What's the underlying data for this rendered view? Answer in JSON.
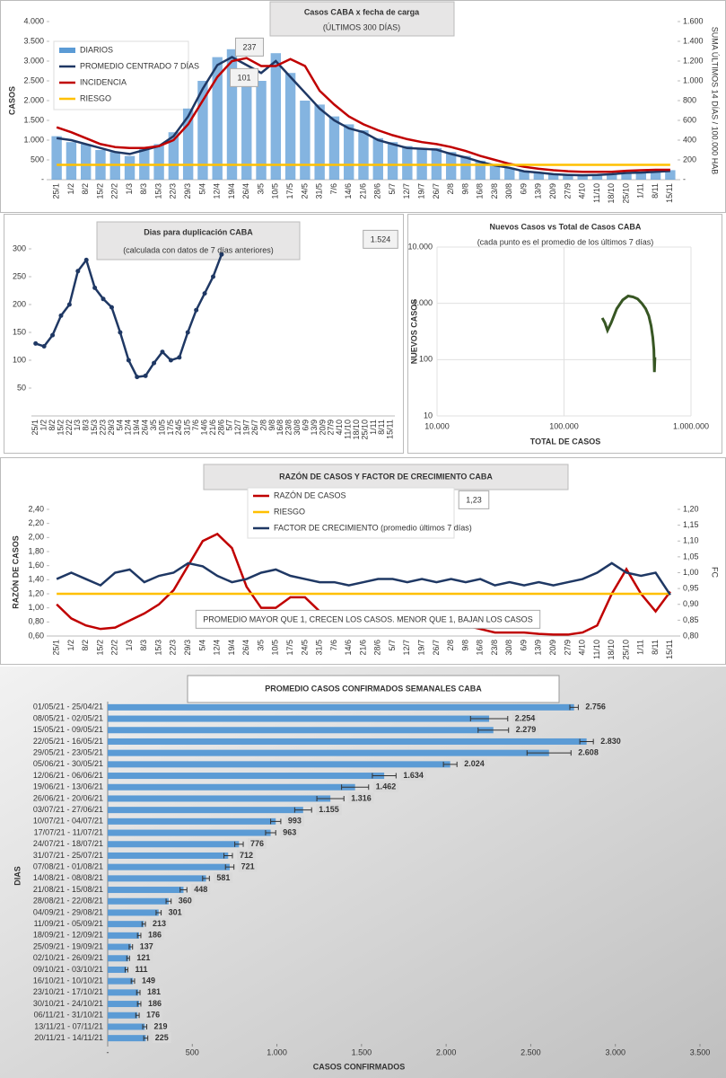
{
  "chart_data": [
    {
      "type": "combo",
      "title": "Casos CABA x fecha de carga",
      "subtitle": "(ÚLTIMOS 300 DÍAS)",
      "y_label": "CASOS",
      "y2_label": "SUMA ÚLTIMOS 14 DÍAS / 100.000 HAB",
      "annotations": [
        "237",
        "101"
      ],
      "categories": [
        "25/1",
        "1/2",
        "8/2",
        "15/2",
        "22/2",
        "1/3",
        "8/3",
        "15/3",
        "22/3",
        "29/3",
        "5/4",
        "12/4",
        "19/4",
        "26/4",
        "3/5",
        "10/5",
        "17/5",
        "24/5",
        "31/5",
        "7/6",
        "14/6",
        "21/6",
        "28/6",
        "5/7",
        "12/7",
        "19/7",
        "26/7",
        "2/8",
        "9/8",
        "16/8",
        "23/8",
        "30/8",
        "6/9",
        "13/9",
        "20/9",
        "27/9",
        "4/10",
        "11/10",
        "18/10",
        "25/10",
        "1/11",
        "8/11",
        "15/11"
      ],
      "series": [
        {
          "name": "DIARIOS",
          "type": "bar",
          "color": "#5b9bd5",
          "values": [
            1100,
            950,
            900,
            750,
            700,
            600,
            800,
            900,
            1200,
            1800,
            2500,
            3100,
            3300,
            2700,
            2500,
            3200,
            2700,
            2000,
            1900,
            1600,
            1400,
            1250,
            1050,
            950,
            850,
            800,
            800,
            700,
            600,
            480,
            380,
            300,
            230,
            190,
            150,
            130,
            120,
            130,
            150,
            180,
            190,
            210,
            240
          ]
        },
        {
          "name": "PROMEDIO CENTRADO 7 DÍAS",
          "type": "line",
          "color": "#1f3864",
          "values": [
            1050,
            1000,
            900,
            800,
            700,
            650,
            750,
            850,
            1100,
            1600,
            2300,
            2900,
            3100,
            2900,
            2700,
            3000,
            2600,
            2200,
            1800,
            1500,
            1300,
            1200,
            1000,
            900,
            800,
            780,
            760,
            650,
            560,
            450,
            360,
            300,
            210,
            180,
            140,
            120,
            110,
            120,
            140,
            170,
            180,
            200,
            220
          ]
        },
        {
          "name": "INCIDENCIA",
          "type": "line",
          "axis": "y2",
          "color": "#c00000",
          "values": [
            530,
            480,
            420,
            360,
            330,
            320,
            320,
            340,
            400,
            560,
            800,
            1040,
            1200,
            1230,
            1150,
            1150,
            1220,
            1150,
            900,
            760,
            640,
            560,
            500,
            450,
            410,
            380,
            360,
            330,
            290,
            240,
            200,
            160,
            130,
            110,
            95,
            85,
            80,
            80,
            80,
            90,
            95,
            100,
            100
          ]
        },
        {
          "name": "RIESGO",
          "type": "line",
          "axis": "y2",
          "color": "#ffc000",
          "values": [
            150,
            150,
            150,
            150,
            150,
            150,
            150,
            150,
            150,
            150,
            150,
            150,
            150,
            150,
            150,
            150,
            150,
            150,
            150,
            150,
            150,
            150,
            150,
            150,
            150,
            150,
            150,
            150,
            150,
            150,
            150,
            150,
            150,
            150,
            150,
            150,
            150,
            150,
            150,
            150,
            150,
            150,
            150
          ]
        }
      ],
      "ylim": [
        0,
        4000
      ],
      "yticks": [
        {
          "value": 0,
          "label": "-"
        },
        500,
        {
          "value": 1000,
          "label": "1.000"
        },
        {
          "value": 1500,
          "label": "1.500"
        },
        {
          "value": 2000,
          "label": "2.000"
        },
        {
          "value": 2500,
          "label": "2.500"
        },
        {
          "value": 3000,
          "label": "3.000"
        },
        {
          "value": 3500,
          "label": "3.500"
        },
        {
          "value": 4000,
          "label": "4.000"
        }
      ],
      "y2lim": [
        0,
        1600
      ],
      "y2ticks": [
        {
          "value": 0,
          "label": "-"
        },
        200,
        400,
        600,
        800,
        {
          "value": 1000,
          "label": "1.000"
        },
        {
          "value": 1200,
          "label": "1.200"
        },
        {
          "value": 1400,
          "label": "1.400"
        },
        {
          "value": 1600,
          "label": "1.600"
        }
      ]
    },
    {
      "type": "combo",
      "title": "Dias para duplicación CABA",
      "subtitle": "(calculada con datos de 7 días anteriores)",
      "annotations": [
        "1.524"
      ],
      "markers": true,
      "categories": [
        "25/1",
        "1/2",
        "8/2",
        "15/2",
        "22/2",
        "1/3",
        "8/3",
        "15/3",
        "22/3",
        "29/3",
        "5/4",
        "12/4",
        "19/4",
        "26/4",
        "3/5",
        "10/5",
        "17/5",
        "24/5",
        "31/5",
        "7/6",
        "14/6",
        "21/6",
        "28/6",
        "5/7",
        "12/7",
        "19/7",
        "26/7",
        "2/8",
        "9/8",
        "16/8",
        "23/8",
        "30/8",
        "6/9",
        "13/9",
        "20/9",
        "27/9",
        "4/10",
        "11/10",
        "18/10",
        "25/10",
        "1/11",
        "8/11",
        "15/11"
      ],
      "color": "#1f3864",
      "values": [
        130,
        125,
        145,
        180,
        200,
        260,
        280,
        230,
        210,
        195,
        150,
        100,
        70,
        72,
        95,
        115,
        100,
        105,
        150,
        190,
        220,
        250,
        290,
        null,
        null,
        null,
        null,
        null,
        null,
        null,
        null,
        null,
        null,
        null,
        null,
        null,
        null,
        null,
        null,
        null,
        null,
        null,
        null
      ],
      "ylim": [
        0,
        300
      ],
      "yticks": [
        50,
        100,
        150,
        200,
        250,
        300
      ]
    },
    {
      "type": "loglog",
      "title": "Nuevos Casos vs Total de Casos CABA",
      "subtitle": "(cada punto es el promedio de los últimos 7 días)",
      "x_label": "TOTAL DE CASOS",
      "y_label": "NUEVOS CASOS",
      "color": "#375623",
      "x": [
        200000,
        210000,
        220000,
        235000,
        260000,
        290000,
        320000,
        350000,
        380000,
        410000,
        440000,
        465000,
        485000,
        500000,
        510000,
        515000,
        520000
      ],
      "values": [
        550,
        450,
        330,
        450,
        800,
        1150,
        1350,
        1300,
        1200,
        1000,
        800,
        600,
        400,
        250,
        150,
        60,
        110
      ],
      "xlim": [
        10000,
        1000000
      ],
      "xticks": [
        {
          "value": 10000,
          "label": "10.000"
        },
        {
          "value": 100000,
          "label": "100.000"
        },
        {
          "value": 1000000,
          "label": "1.000.000"
        }
      ],
      "ylim": [
        10,
        10000
      ],
      "yticks": [
        10,
        100,
        {
          "value": 1000,
          "label": "1.000"
        },
        {
          "value": 10000,
          "label": "10.000"
        }
      ]
    },
    {
      "type": "combo",
      "title": "RAZÓN DE CASOS Y FACTOR DE CRECIMIENTO CABA",
      "y_label": "RAZÓN DE CASOS",
      "y2_label": "FC",
      "annotations": [
        "1,23",
        "PROMEDIO MAYOR QUE 1, CRECEN LOS CASOS. MENOR QUE 1, BAJAN LOS CASOS"
      ],
      "categories": [
        "25/1",
        "1/2",
        "8/2",
        "15/2",
        "22/2",
        "1/3",
        "8/3",
        "15/3",
        "22/3",
        "29/3",
        "5/4",
        "12/4",
        "19/4",
        "26/4",
        "3/5",
        "10/5",
        "17/5",
        "24/5",
        "31/5",
        "7/6",
        "14/6",
        "21/6",
        "28/6",
        "5/7",
        "12/7",
        "19/7",
        "26/7",
        "2/8",
        "9/8",
        "16/8",
        "23/8",
        "30/8",
        "6/9",
        "13/9",
        "20/9",
        "27/9",
        "4/10",
        "11/10",
        "18/10",
        "25/10",
        "1/11",
        "8/11",
        "15/11"
      ],
      "series": [
        {
          "name": "RAZÓN DE CASOS",
          "type": "line",
          "color": "#c00000",
          "values": [
            1.05,
            0.85,
            0.75,
            0.7,
            0.72,
            0.82,
            0.92,
            1.05,
            1.25,
            1.6,
            1.95,
            2.05,
            1.85,
            1.3,
            1.0,
            1.0,
            1.15,
            1.15,
            0.95,
            0.8,
            0.75,
            0.8,
            0.85,
            0.85,
            0.8,
            0.8,
            0.8,
            0.8,
            0.75,
            0.7,
            0.65,
            0.65,
            0.65,
            0.63,
            0.62,
            0.62,
            0.65,
            0.75,
            1.2,
            1.55,
            1.2,
            0.95,
            1.23
          ]
        },
        {
          "name": "RIESGO",
          "type": "line",
          "color": "#ffc000",
          "values": [
            1.2,
            1.2,
            1.2,
            1.2,
            1.2,
            1.2,
            1.2,
            1.2,
            1.2,
            1.2,
            1.2,
            1.2,
            1.2,
            1.2,
            1.2,
            1.2,
            1.2,
            1.2,
            1.2,
            1.2,
            1.2,
            1.2,
            1.2,
            1.2,
            1.2,
            1.2,
            1.2,
            1.2,
            1.2,
            1.2,
            1.2,
            1.2,
            1.2,
            1.2,
            1.2,
            1.2,
            1.2,
            1.2,
            1.2,
            1.2,
            1.2,
            1.2,
            1.2
          ]
        },
        {
          "name": "FACTOR DE CRECIMIENTO (promedio últimos 7 días)",
          "type": "line",
          "axis": "y2",
          "color": "#1f3864",
          "values": [
            0.98,
            1.0,
            0.98,
            0.96,
            1.0,
            1.01,
            0.97,
            0.99,
            1.0,
            1.03,
            1.02,
            0.99,
            0.97,
            0.98,
            1.0,
            1.01,
            0.99,
            0.98,
            0.97,
            0.97,
            0.96,
            0.97,
            0.98,
            0.98,
            0.97,
            0.98,
            0.97,
            0.98,
            0.97,
            0.98,
            0.96,
            0.97,
            0.96,
            0.97,
            0.96,
            0.97,
            0.98,
            1.0,
            1.03,
            1.0,
            0.99,
            1.0,
            0.93
          ]
        }
      ],
      "ylim": [
        0.6,
        2.4
      ],
      "yticks": [
        {
          "value": 0.6,
          "label": "0,60"
        },
        {
          "value": 0.8,
          "label": "0,80"
        },
        {
          "value": 1.0,
          "label": "1,00"
        },
        {
          "value": 1.2,
          "label": "1,20"
        },
        {
          "value": 1.4,
          "label": "1,40"
        },
        {
          "value": 1.6,
          "label": "1,60"
        },
        {
          "value": 1.8,
          "label": "1,80"
        },
        {
          "value": 2.0,
          "label": "2,00"
        },
        {
          "value": 2.2,
          "label": "2,20"
        },
        {
          "value": 2.4,
          "label": "2,40"
        }
      ],
      "y2lim": [
        0.8,
        1.2
      ],
      "y2ticks": [
        {
          "value": 0.8,
          "label": "0,80"
        },
        {
          "value": 0.85,
          "label": "0,85"
        },
        {
          "value": 0.9,
          "label": "0,90"
        },
        {
          "value": 0.95,
          "label": "0,95"
        },
        {
          "value": 1.0,
          "label": "1,00"
        },
        {
          "value": 1.05,
          "label": "1,05"
        },
        {
          "value": 1.1,
          "label": "1,10"
        },
        {
          "value": 1.15,
          "label": "1,15"
        },
        {
          "value": 1.2,
          "label": "1,20"
        }
      ]
    },
    {
      "type": "hbar",
      "title": "PROMEDIO CASOS CONFIRMADOS SEMANALES CABA",
      "x_label": "CASOS CONFIRMADOS",
      "y_label": "DIAS",
      "color": "#5b9bd5",
      "categories": [
        "01/05/21 - 25/04/21",
        "08/05/21 - 02/05/21",
        "15/05/21 - 09/05/21",
        "22/05/21 - 16/05/21",
        "29/05/21 - 23/05/21",
        "05/06/21 - 30/05/21",
        "12/06/21 - 06/06/21",
        "19/06/21 - 13/06/21",
        "26/06/21 - 20/06/21",
        "03/07/21 - 27/06/21",
        "10/07/21 - 04/07/21",
        "17/07/21 - 11/07/21",
        "24/07/21 - 18/07/21",
        "31/07/21 - 25/07/21",
        "07/08/21 - 01/08/21",
        "14/08/21 - 08/08/21",
        "21/08/21 - 15/08/21",
        "28/08/21 - 22/08/21",
        "04/09/21 - 29/08/21",
        "11/09/21 - 05/09/21",
        "18/09/21 - 12/09/21",
        "25/09/21 - 19/09/21",
        "02/10/21 - 26/09/21",
        "09/10/21 - 03/10/21",
        "16/10/21 - 10/10/21",
        "23/10/21 - 17/10/21",
        "30/10/21 - 24/10/21",
        "06/11/21 - 31/10/21",
        "13/11/21 - 07/11/21",
        "20/11/21 - 14/11/21"
      ],
      "values": [
        2756,
        2254,
        2279,
        2830,
        2608,
        2024,
        1634,
        1462,
        1316,
        1155,
        993,
        963,
        776,
        712,
        721,
        581,
        448,
        360,
        301,
        213,
        186,
        137,
        121,
        111,
        149,
        181,
        186,
        176,
        219,
        225
      ],
      "value_labels": [
        "2.756",
        "2.254",
        "2.279",
        "2.830",
        "2.608",
        "2.024",
        "1.634",
        "1.462",
        "1.316",
        "1.155",
        "993",
        "963",
        "776",
        "712",
        "721",
        "581",
        "448",
        "360",
        "301",
        "213",
        "186",
        "137",
        "121",
        "111",
        "149",
        "181",
        "186",
        "176",
        "219",
        "225"
      ],
      "errors": [
        25,
        110,
        90,
        40,
        130,
        40,
        70,
        80,
        80,
        50,
        30,
        30,
        25,
        25,
        25,
        20,
        20,
        15,
        15,
        10,
        10,
        10,
        8,
        8,
        10,
        10,
        10,
        10,
        12,
        12
      ],
      "xlim": [
        0,
        3500
      ],
      "xticks": [
        {
          "value": 0,
          "label": "-"
        },
        500,
        {
          "value": 1000,
          "label": "1.000"
        },
        {
          "value": 1500,
          "label": "1.500"
        },
        {
          "value": 2000,
          "label": "2.000"
        },
        {
          "value": 2500,
          "label": "2.500"
        },
        {
          "value": 3000,
          "label": "3.000"
        },
        {
          "value": 3500,
          "label": "3.500"
        }
      ]
    }
  ]
}
